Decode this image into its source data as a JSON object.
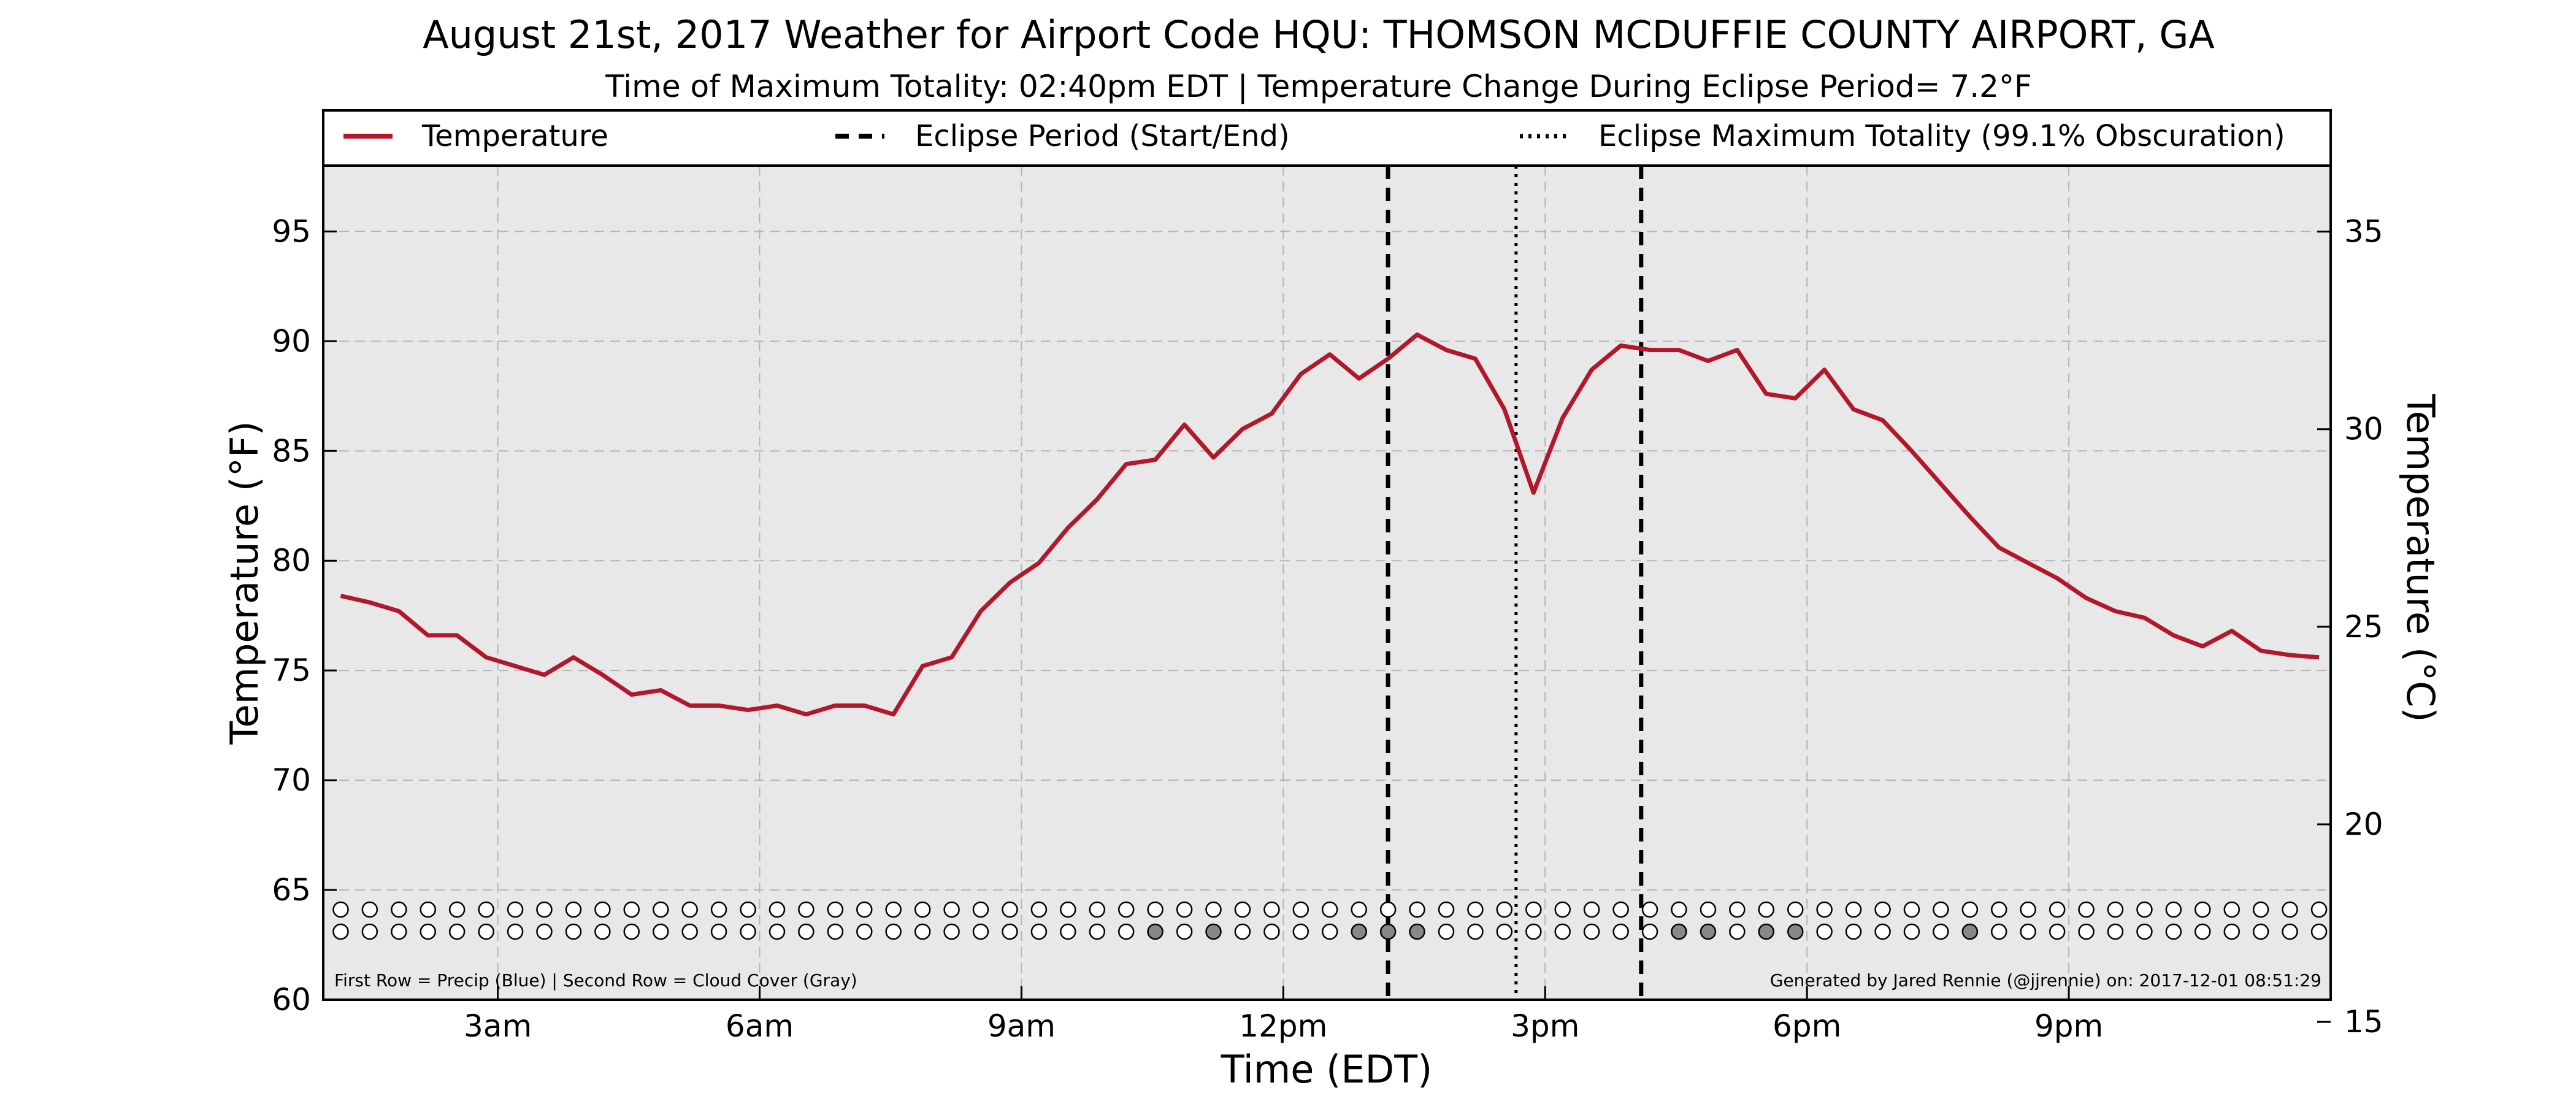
{
  "header": {
    "title": "August 21st, 2017 Weather for Airport Code HQU: THOMSON MCDUFFIE COUNTY AIRPORT, GA",
    "subtitle": "Time of Maximum Totality: 02:40pm EDT | Temperature Change During Eclipse Period= 7.2°F"
  },
  "legend": {
    "placement": "top",
    "items": [
      {
        "label": "Temperature",
        "style": "solid",
        "color": "#b2182b"
      },
      {
        "label": "Eclipse Period (Start/End)",
        "style": "dashed",
        "color": "#000000"
      },
      {
        "label": "Eclipse Maximum Totality (99.1% Obscuration)",
        "style": "dotted",
        "color": "#000000"
      }
    ]
  },
  "footnotes": {
    "left": "First Row = Precip (Blue) | Second Row = Cloud Cover (Gray)",
    "right": "Generated by Jared Rennie (@jjrennie) on: 2017-12-01 08:51:29"
  },
  "colors": {
    "temperature_line": "#b2182b",
    "plot_background": "#e8e8e8",
    "cloud_marker": "#888888",
    "empty_marker": "#ffffff"
  },
  "chart_data": {
    "type": "line",
    "xlabel": "Time (EDT)",
    "ylabel": "Temperature ($^\\circ$F)",
    "ylabel_display": "Temperature (°F)",
    "ylabel_right": "Temperature (°C)",
    "xlim_hours": [
      1.0,
      24.0
    ],
    "ylim": [
      60,
      98
    ],
    "ylim_right_celsius": [
      15.56,
      36.67
    ],
    "x_ticks": [
      {
        "hour": 3,
        "label": "3am"
      },
      {
        "hour": 6,
        "label": "6am"
      },
      {
        "hour": 9,
        "label": "9am"
      },
      {
        "hour": 12,
        "label": "12pm"
      },
      {
        "hour": 15,
        "label": "3pm"
      },
      {
        "hour": 18,
        "label": "6pm"
      },
      {
        "hour": 21,
        "label": "9pm"
      }
    ],
    "y_ticks": [
      60,
      65,
      70,
      75,
      80,
      85,
      90,
      95
    ],
    "y_ticks_right": [
      15,
      20,
      25,
      30,
      35
    ],
    "grid": true,
    "eclipse": {
      "start_hour": 13.2,
      "max_hour": 14.667,
      "end_hour": 16.1
    },
    "series": [
      {
        "name": "Temperature",
        "hours": [
          1.2,
          1.533,
          1.867,
          2.2,
          2.533,
          2.867,
          3.2,
          3.533,
          3.867,
          4.2,
          4.533,
          4.867,
          5.2,
          5.533,
          5.867,
          6.2,
          6.533,
          6.867,
          7.2,
          7.533,
          7.867,
          8.2,
          8.533,
          8.867,
          9.2,
          9.533,
          9.867,
          10.2,
          10.533,
          10.867,
          11.2,
          11.533,
          11.867,
          12.2,
          12.533,
          12.867,
          13.2,
          13.533,
          13.867,
          14.2,
          14.533,
          14.867,
          15.2,
          15.533,
          15.867,
          16.2,
          16.533,
          16.867,
          17.2,
          17.533,
          17.867,
          18.2,
          18.533,
          18.867,
          19.2,
          19.533,
          19.867,
          20.2,
          20.533,
          20.867,
          21.2,
          21.533,
          21.867,
          22.2,
          22.533,
          22.867,
          23.2,
          23.533,
          23.867
        ],
        "values_f": [
          78.4,
          78.1,
          77.7,
          76.6,
          76.6,
          75.6,
          75.2,
          74.8,
          75.6,
          74.8,
          73.9,
          74.1,
          73.4,
          73.4,
          73.2,
          73.4,
          73.0,
          73.4,
          73.4,
          73.0,
          75.2,
          75.6,
          77.7,
          79.0,
          79.9,
          81.5,
          82.8,
          84.4,
          84.6,
          86.2,
          84.7,
          86.0,
          86.7,
          88.5,
          89.4,
          88.3,
          89.2,
          90.3,
          89.6,
          89.2,
          86.9,
          83.1,
          86.5,
          88.7,
          89.8,
          89.6,
          89.6,
          89.1,
          89.6,
          87.6,
          87.4,
          88.7,
          86.9,
          86.4,
          85.0,
          83.5,
          82.0,
          80.6,
          79.9,
          79.2,
          78.3,
          77.7,
          77.4,
          76.6,
          76.1,
          76.8,
          75.9,
          75.7,
          75.6
        ]
      }
    ],
    "precip_row": [
      0,
      0,
      0,
      0,
      0,
      0,
      0,
      0,
      0,
      0,
      0,
      0,
      0,
      0,
      0,
      0,
      0,
      0,
      0,
      0,
      0,
      0,
      0,
      0,
      0,
      0,
      0,
      0,
      0,
      0,
      0,
      0,
      0,
      0,
      0,
      0,
      0,
      0,
      0,
      0,
      0,
      0,
      0,
      0,
      0,
      0,
      0,
      0,
      0,
      0,
      0,
      0,
      0,
      0,
      0,
      0,
      0,
      0,
      0,
      0,
      0,
      0,
      0,
      0,
      0,
      0,
      0,
      0,
      0
    ],
    "cloud_row": [
      0,
      0,
      0,
      0,
      0,
      0,
      0,
      0,
      0,
      0,
      0,
      0,
      0,
      0,
      0,
      0,
      0,
      0,
      0,
      0,
      0,
      0,
      0,
      0,
      0,
      0,
      0,
      0,
      1,
      0,
      1,
      0,
      0,
      0,
      0,
      1,
      1,
      1,
      0,
      0,
      0,
      0,
      0,
      0,
      0,
      0,
      1,
      1,
      0,
      1,
      1,
      0,
      0,
      0,
      0,
      0,
      1,
      0,
      0,
      0,
      0,
      0,
      0,
      0,
      0,
      0,
      0,
      0,
      0
    ]
  }
}
